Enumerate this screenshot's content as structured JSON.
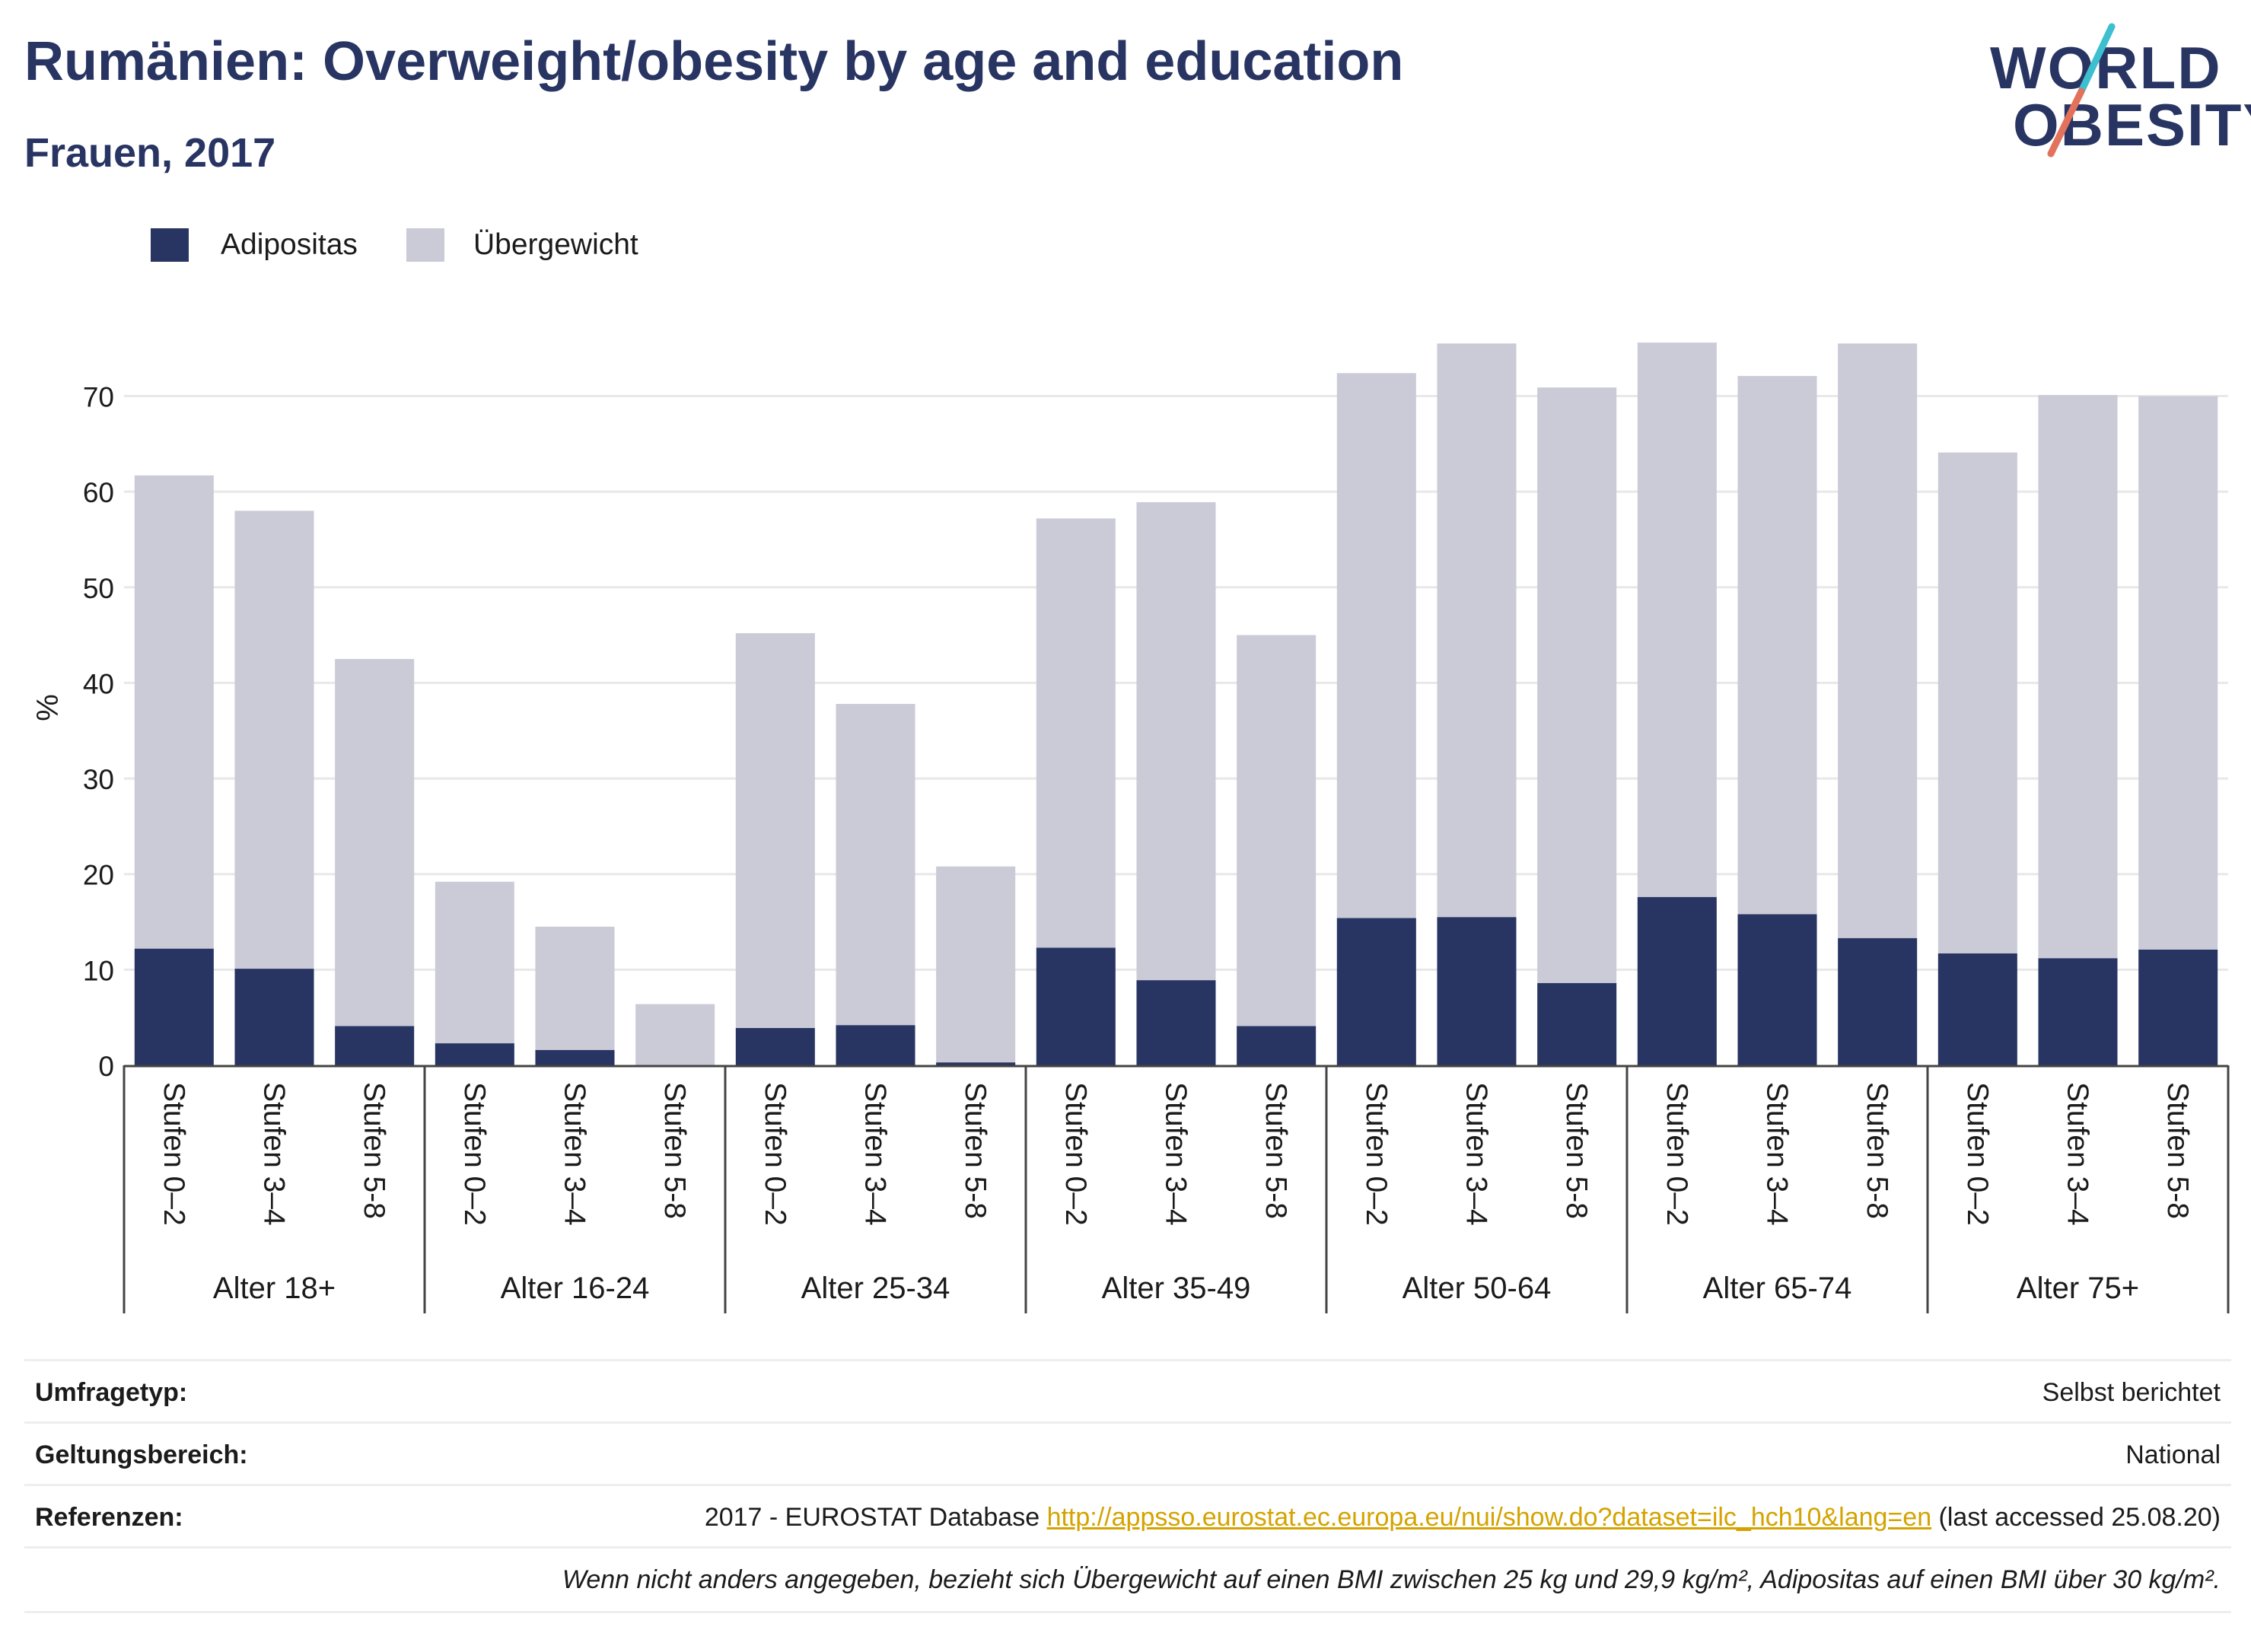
{
  "header": {
    "title": "Rumänien: Overweight/obesity by age and education",
    "subtitle": "Frauen, 2017"
  },
  "logo": {
    "line1": "WORLD",
    "line2": "OBESITY"
  },
  "colors": {
    "obesity": "#283462",
    "overweight": "#cacbd7",
    "title": "#283462",
    "link": "#d4a300"
  },
  "legend": {
    "obesity": "Adipositas",
    "overweight": "Übergewicht"
  },
  "chart_data": {
    "type": "bar",
    "stacked": true,
    "ylabel": "%",
    "ylim": [
      0,
      78
    ],
    "yticks": [
      0,
      10,
      20,
      30,
      40,
      50,
      60,
      70
    ],
    "grid": true,
    "legend_position": "top-left",
    "groups": [
      "Alter 18+",
      "Alter 16-24",
      "Alter 25-34",
      "Alter 35-49",
      "Alter 50-64",
      "Alter 65-74",
      "Alter 75+"
    ],
    "subcategories": [
      "Stufen 0–2",
      "Stufen 3–4",
      "Stufen 5-8"
    ],
    "series": [
      {
        "name": "Adipositas",
        "values": [
          12.2,
          10.1,
          4.1,
          2.3,
          1.6,
          0.0,
          3.9,
          4.2,
          0.3,
          12.3,
          8.9,
          4.1,
          15.4,
          15.5,
          8.6,
          17.6,
          15.8,
          13.3,
          11.7,
          11.2,
          12.1
        ]
      },
      {
        "name": "Übergewicht",
        "values": [
          49.5,
          47.9,
          38.4,
          16.9,
          12.9,
          6.4,
          41.3,
          33.6,
          20.5,
          44.9,
          50.0,
          40.9,
          57.0,
          60.0,
          62.3,
          58.0,
          56.3,
          62.2,
          52.4,
          58.9,
          57.9
        ]
      }
    ]
  },
  "footer": {
    "survey_label": "Umfragetyp:",
    "survey_value": "Selbst berichtet",
    "scope_label": "Geltungsbereich:",
    "scope_value": "National",
    "ref_label": "Referenzen:",
    "ref_prefix": "2017 - EUROSTAT Database ",
    "ref_link": "http://appsso.eurostat.ec.europa.eu/nui/show.do?dataset=ilc_hch10&lang=en",
    "ref_suffix": " (last accessed 25.08.20)",
    "note": "Wenn nicht anders angegeben, bezieht sich Übergewicht auf einen BMI zwischen 25 kg und 29,9 kg/m², Adipositas auf einen BMI über 30 kg/m²."
  }
}
